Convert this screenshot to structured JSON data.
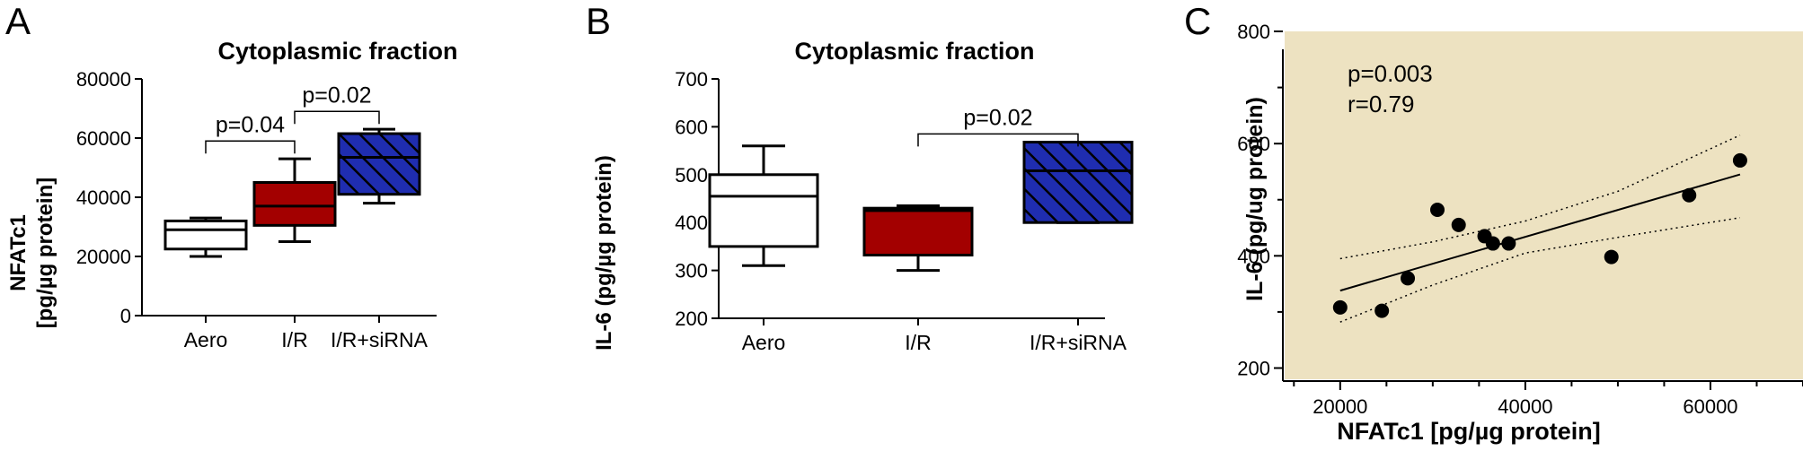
{
  "colors": {
    "aero_fill": "#ffffff",
    "ir_fill": "#a30000",
    "siRNA_fill": "#1f2db0",
    "siRNA_hatch": "#000000",
    "plot_bg_c": "#ede2c1"
  },
  "panels": {
    "a": {
      "letter": "A"
    },
    "b": {
      "letter": "B"
    },
    "c": {
      "letter": "C"
    }
  },
  "chart_data": [
    {
      "type": "box",
      "panel": "A",
      "title": "Cytoplasmic fraction",
      "ylabel_line1": "NFATc1",
      "ylabel_line2": "[pg/µg protein]",
      "xlabel": "",
      "ylim": [
        0,
        80000
      ],
      "yticks": [
        0,
        20000,
        40000,
        60000,
        80000
      ],
      "ytick_labels": [
        "0",
        "20000",
        "40000",
        "60000",
        "80000"
      ],
      "categories": [
        "Aero",
        "I/R",
        "I/R+siRNA"
      ],
      "boxes": [
        {
          "name": "Aero",
          "min": 20000,
          "q1": 22500,
          "median": 29000,
          "q3": 32000,
          "max": 33000,
          "style": "white"
        },
        {
          "name": "I/R",
          "min": 25000,
          "q1": 30500,
          "median": 37000,
          "q3": 45000,
          "max": 53000,
          "style": "red"
        },
        {
          "name": "I/R+siRNA",
          "min": 38000,
          "q1": 41000,
          "median": 53500,
          "q3": 61500,
          "max": 63000,
          "style": "hatched"
        }
      ],
      "annotations": [
        {
          "text": "p=0.04",
          "from": 0,
          "to": 1,
          "y": 59000
        },
        {
          "text": "p=0.02",
          "from": 1,
          "to": 2,
          "y": 69000
        }
      ]
    },
    {
      "type": "box",
      "panel": "B",
      "title": "Cytoplasmic fraction",
      "ylabel": "IL-6 (pg/µg protein)",
      "xlabel": "",
      "ylim": [
        200,
        700
      ],
      "yticks": [
        200,
        300,
        400,
        500,
        600,
        700
      ],
      "ytick_labels": [
        "200",
        "300",
        "400",
        "500",
        "600",
        "700"
      ],
      "categories": [
        "Aero",
        "I/R",
        "I/R+siRNA"
      ],
      "boxes": [
        {
          "name": "Aero",
          "min": 310,
          "q1": 350,
          "median": 455,
          "q3": 500,
          "max": 560,
          "style": "white"
        },
        {
          "name": "I/R",
          "min": 300,
          "q1": 332,
          "median": 425,
          "q3": 430,
          "max": 435,
          "style": "red"
        },
        {
          "name": "I/R+siRNA",
          "min": 400,
          "q1": 400,
          "median": 508,
          "q3": 568,
          "max": 568,
          "style": "hatched"
        }
      ],
      "annotations": [
        {
          "text": "p=0.02",
          "from": 1,
          "to": 2,
          "y": 585
        }
      ]
    },
    {
      "type": "scatter",
      "panel": "C",
      "title": "",
      "xlabel": "NFATc1 [pg/µg protein]",
      "ylabel": "IL-6 (pg/ug protein)",
      "xlim": [
        14000,
        70000
      ],
      "ylim": [
        180,
        800
      ],
      "xticks": [
        20000,
        40000,
        60000
      ],
      "xtick_labels": [
        "20000",
        "40000",
        "60000"
      ],
      "yticks": [
        200,
        400,
        600,
        800
      ],
      "ytick_labels": [
        "200",
        "400",
        "600",
        "800"
      ],
      "stats": {
        "p": "p=0.003",
        "r": "r=0.79"
      },
      "points": [
        {
          "x": 20000,
          "y": 308
        },
        {
          "x": 24500,
          "y": 302
        },
        {
          "x": 27300,
          "y": 360
        },
        {
          "x": 30500,
          "y": 482
        },
        {
          "x": 32800,
          "y": 455
        },
        {
          "x": 35600,
          "y": 435
        },
        {
          "x": 36500,
          "y": 422
        },
        {
          "x": 38200,
          "y": 422
        },
        {
          "x": 49300,
          "y": 398
        },
        {
          "x": 57700,
          "y": 508
        },
        {
          "x": 63200,
          "y": 570
        }
      ],
      "fit": {
        "x0": 20000,
        "y0": 338,
        "x1": 63200,
        "y1": 545
      },
      "ci_upper": [
        [
          20000,
          395
        ],
        [
          30000,
          425
        ],
        [
          40000,
          462
        ],
        [
          50000,
          515
        ],
        [
          63200,
          615
        ]
      ],
      "ci_lower": [
        [
          20000,
          282
        ],
        [
          30000,
          348
        ],
        [
          40000,
          405
        ],
        [
          50000,
          433
        ],
        [
          63200,
          468
        ]
      ]
    }
  ]
}
